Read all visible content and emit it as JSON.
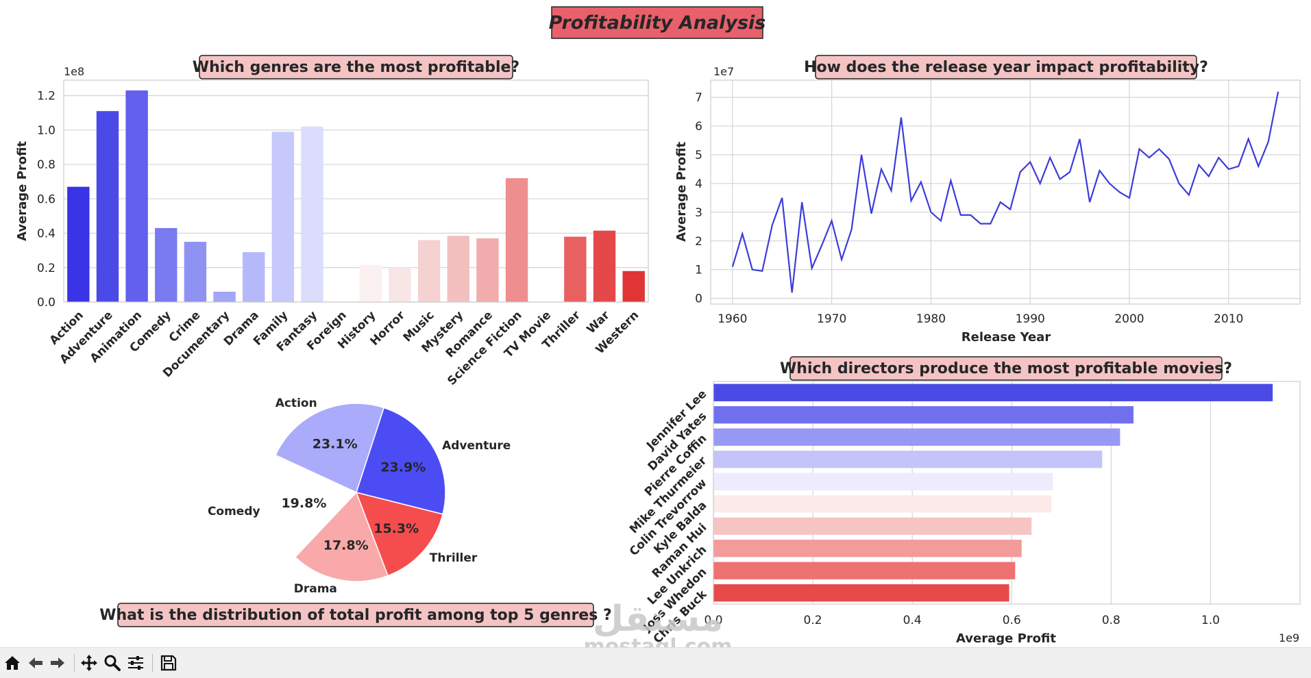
{
  "suptitle": "Profitability Analysis",
  "colors": {
    "suptitle_bg": "#e8606c",
    "title_bg": "#f4c4c4",
    "line": "#3b3bdc",
    "grid": "#d4d4d4"
  },
  "chart_data": [
    {
      "type": "bar",
      "title": "Which genres are the most profitable?",
      "xlabel": "",
      "ylabel": "Average Profit",
      "offset_label": "1e8",
      "ylim": [
        0,
        1.29
      ],
      "yticks": [
        0.0,
        0.2,
        0.4,
        0.6,
        0.8,
        1.0,
        1.2
      ],
      "ytick_labels": [
        "0.0",
        "0.2",
        "0.4",
        "0.6",
        "0.8",
        "1.0",
        "1.2"
      ],
      "categories": [
        "Action",
        "Adventure",
        "Animation",
        "Comedy",
        "Crime",
        "Documentary",
        "Drama",
        "Family",
        "Fantasy",
        "Foreign",
        "History",
        "Horror",
        "Music",
        "Mystery",
        "Romance",
        "Science Fiction",
        "TV Movie",
        "Thriller",
        "War",
        "Western"
      ],
      "values": [
        0.67,
        1.11,
        1.23,
        0.43,
        0.35,
        0.06,
        0.29,
        0.99,
        1.02,
        0.005,
        0.215,
        0.2,
        0.36,
        0.385,
        0.37,
        0.72,
        0.002,
        0.38,
        0.415,
        0.18
      ],
      "colors": [
        "#3a34e6",
        "#4c49e9",
        "#6260ec",
        "#7a7bf0",
        "#8f92f3",
        "#a2a6f6",
        "#b5b8f9",
        "#c7c9fb",
        "#dcdcfc",
        "#f6f5f7",
        "#fbf1f1",
        "#f8e5e5",
        "#f5d1d1",
        "#f3c0c0",
        "#f1adad",
        "#ee8e8e",
        "#ec7a7a",
        "#e96060",
        "#e54848",
        "#e03535"
      ],
      "grid": true
    },
    {
      "type": "line",
      "title": "How does the release year impact profitability?",
      "xlabel": "Release Year",
      "ylabel": "Average Profit",
      "offset_label": "1e7",
      "xlim": [
        1957.8,
        2017.2
      ],
      "ylim": [
        -0.2,
        7.6
      ],
      "xticks": [
        1960,
        1970,
        1980,
        1990,
        2000,
        2010
      ],
      "yticks": [
        0,
        1,
        2,
        3,
        4,
        5,
        6,
        7
      ],
      "x": [
        1960,
        1961,
        1962,
        1963,
        1964,
        1965,
        1966,
        1967,
        1968,
        1969,
        1970,
        1971,
        1972,
        1973,
        1974,
        1975,
        1976,
        1977,
        1978,
        1979,
        1980,
        1981,
        1982,
        1983,
        1984,
        1985,
        1986,
        1987,
        1988,
        1989,
        1990,
        1991,
        1992,
        1993,
        1994,
        1995,
        1996,
        1997,
        1998,
        1999,
        2000,
        2001,
        2002,
        2003,
        2004,
        2005,
        2006,
        2007,
        2008,
        2009,
        2010,
        2011,
        2012,
        2013,
        2014,
        2015
      ],
      "y": [
        1.1,
        2.25,
        1.0,
        0.95,
        2.55,
        3.5,
        0.2,
        3.35,
        1.05,
        1.85,
        2.7,
        1.35,
        2.4,
        5.0,
        2.95,
        4.5,
        3.75,
        6.3,
        3.4,
        4.05,
        3.0,
        2.7,
        4.1,
        2.9,
        2.9,
        2.6,
        2.6,
        3.35,
        3.1,
        4.4,
        4.75,
        4.0,
        4.9,
        4.15,
        4.4,
        5.55,
        3.35,
        4.45,
        4.0,
        3.7,
        3.5,
        5.2,
        4.9,
        5.2,
        4.85,
        4.0,
        3.6,
        4.65,
        4.25,
        4.9,
        4.5,
        4.6,
        5.55,
        4.6,
        5.45,
        7.2
      ],
      "grid": true
    },
    {
      "type": "pie",
      "title": "What is the distribution of total profit among top 5 genres ?",
      "labels": [
        "Action",
        "Comedy",
        "Drama",
        "Thriller",
        "Adventure"
      ],
      "percent_labels": [
        "23.1%",
        "19.8%",
        "17.8%",
        "15.3%",
        "23.9%"
      ],
      "values": [
        23.1,
        19.8,
        17.8,
        15.3,
        23.9
      ],
      "colors": [
        "#aaabfb",
        "#ffffff",
        "#f9a9a9",
        "#f54d4d",
        "#4c4cf5"
      ]
    },
    {
      "type": "bar",
      "orientation": "horizontal",
      "title": "Which directors produce the most profitable movies?",
      "xlabel": "Average Profit",
      "ylabel": "",
      "offset_label": "1e9",
      "xlim": [
        0,
        1.18
      ],
      "xticks": [
        0.0,
        0.2,
        0.4,
        0.6,
        0.8,
        1.0
      ],
      "xtick_labels": [
        "0.0",
        "0.2",
        "0.4",
        "0.6",
        "0.8",
        "1.0"
      ],
      "categories": [
        "Jennifer Lee",
        "David Yates",
        "Pierre Coffin",
        "Mike Thurmeier",
        "Colin Trevorrow",
        "Kyle Balda",
        "Raman Hui",
        "Lee Unkrich",
        "Joss Whedon",
        "Chris Buck"
      ],
      "values": [
        1.125,
        0.845,
        0.818,
        0.782,
        0.683,
        0.68,
        0.64,
        0.62,
        0.607,
        0.595
      ],
      "colors": [
        "#4a4ae6",
        "#7070ef",
        "#9898f5",
        "#c4c4fa",
        "#ececfd",
        "#fdeaea",
        "#f7c4c4",
        "#f39a9a",
        "#ee7272",
        "#e84a4a"
      ],
      "grid": true
    }
  ],
  "toolbar": {
    "icons": [
      "home-icon",
      "back-icon",
      "forward-icon",
      "pan-icon",
      "zoom-icon",
      "configure-icon",
      "save-icon"
    ]
  },
  "watermark": {
    "arabic": "مستقل",
    "latin": "mostaql.com"
  }
}
